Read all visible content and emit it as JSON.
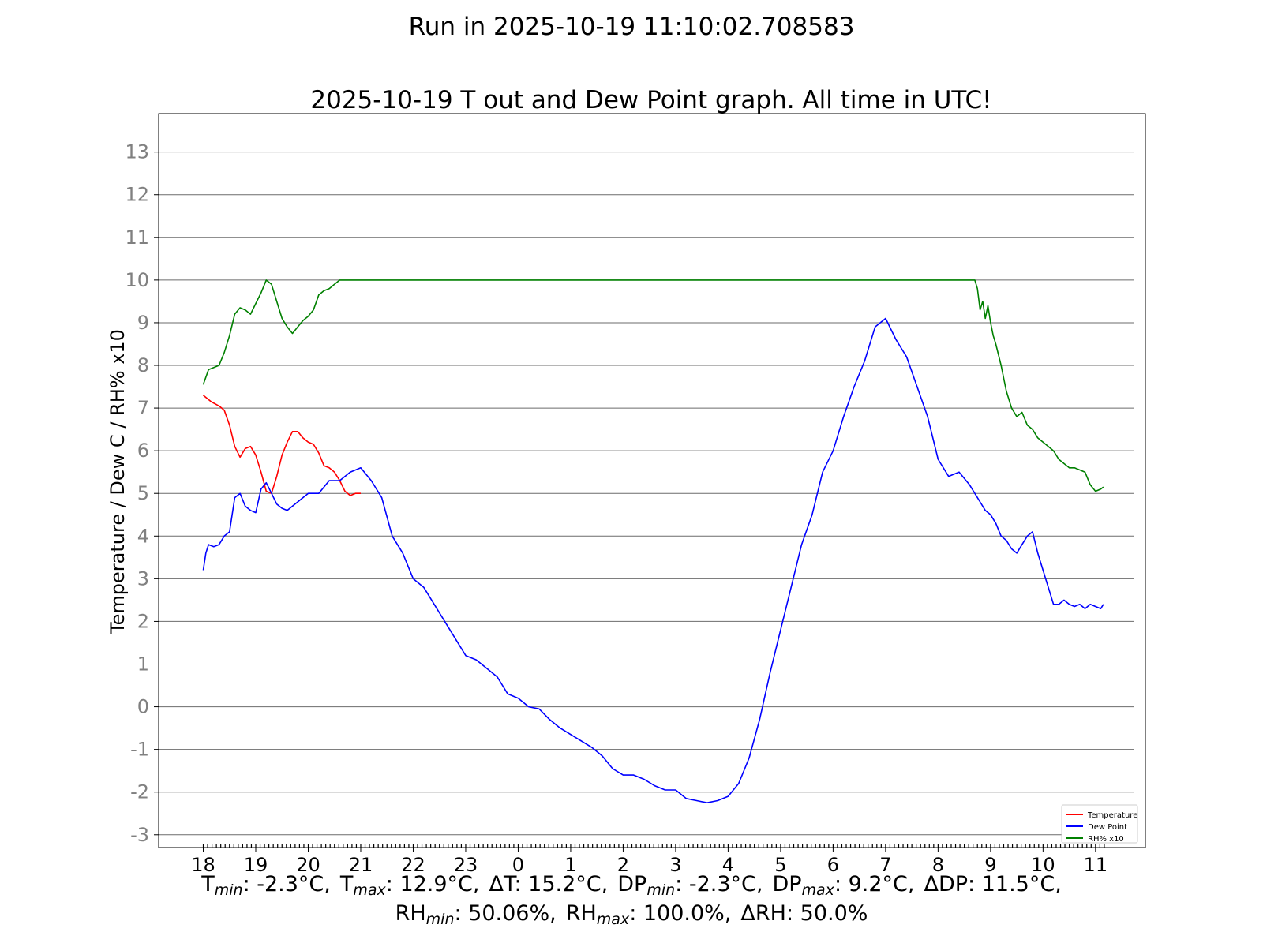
{
  "suptitle": "Run in 2025-10-19 11:10:02.708583",
  "stats": {
    "line1": [
      {
        "base": "T",
        "sub": "min",
        "value": ": -2.3°C,"
      },
      {
        "base": "T",
        "sub": "max",
        "value": ": 12.9°C,"
      },
      {
        "base": "ΔT",
        "sub": "",
        "value": ": 15.2°C,"
      },
      {
        "base": "DP",
        "sub": "min",
        "value": ": -2.3°C,"
      },
      {
        "base": "DP",
        "sub": "max",
        "value": ": 9.2°C,"
      },
      {
        "base": "ΔDP",
        "sub": "",
        "value": ": 11.5°C,"
      }
    ],
    "line2": [
      {
        "base": "RH",
        "sub": "min",
        "value": ": 50.06%,"
      },
      {
        "base": "RH",
        "sub": "max",
        "value": ": 100.0%,"
      },
      {
        "base": "ΔRH",
        "sub": "",
        "value": ": 50.0%"
      }
    ]
  },
  "chart_data": {
    "type": "line",
    "title": "2025-10-19 T out and Dew Point graph. All time in UTC!",
    "ylabel": "Temperature / Dew C / RH% x10",
    "xlabel": "",
    "x_unit": "hours since 18:00 UTC (2025-10-18 18:00 to 2025-10-19 11:10)",
    "x_ticks": [
      {
        "x": 0,
        "label": "18"
      },
      {
        "x": 1,
        "label": "19"
      },
      {
        "x": 2,
        "label": "20"
      },
      {
        "x": 3,
        "label": "21"
      },
      {
        "x": 4,
        "label": "22"
      },
      {
        "x": 5,
        "label": "23"
      },
      {
        "x": 6,
        "label": "0"
      },
      {
        "x": 7,
        "label": "1"
      },
      {
        "x": 8,
        "label": "2"
      },
      {
        "x": 9,
        "label": "3"
      },
      {
        "x": 10,
        "label": "4"
      },
      {
        "x": 11,
        "label": "5"
      },
      {
        "x": 12,
        "label": "6"
      },
      {
        "x": 13,
        "label": "7"
      },
      {
        "x": 14,
        "label": "8"
      },
      {
        "x": 15,
        "label": "9"
      },
      {
        "x": 16,
        "label": "10"
      },
      {
        "x": 17,
        "label": "11"
      }
    ],
    "y_ticks": [
      -3,
      -2,
      -1,
      0,
      1,
      2,
      3,
      4,
      5,
      6,
      7,
      8,
      9,
      10,
      11,
      12,
      13
    ],
    "xlim": [
      -0.85,
      17.95
    ],
    "ylim": [
      -3.3,
      13.9
    ],
    "grid": "horizontal",
    "legend_position": "lower-right",
    "series": [
      {
        "name": "Temperature",
        "color": "#ff0000",
        "x": [
          0,
          0.15,
          0.3,
          0.4,
          0.5,
          0.6,
          0.7,
          0.8,
          0.9,
          1.0,
          1.1,
          1.2,
          1.3,
          1.4,
          1.5,
          1.6,
          1.7,
          1.8,
          1.9,
          2.0,
          2.1,
          2.2,
          2.3,
          2.4,
          2.5,
          2.6,
          2.7,
          2.8,
          2.9,
          3.0
        ],
        "y": [
          7.3,
          7.15,
          7.05,
          6.95,
          6.6,
          6.1,
          5.85,
          6.05,
          6.1,
          5.9,
          5.5,
          5.05,
          5.0,
          5.4,
          5.9,
          6.2,
          6.45,
          6.45,
          6.3,
          6.2,
          6.15,
          5.95,
          5.65,
          5.6,
          5.5,
          5.3,
          5.05,
          4.95,
          5.0,
          5.0
        ]
      },
      {
        "name": "Dew Point",
        "color": "#0000ff",
        "x": [
          0,
          0.05,
          0.1,
          0.2,
          0.3,
          0.4,
          0.5,
          0.6,
          0.7,
          0.8,
          0.9,
          1.0,
          1.1,
          1.2,
          1.3,
          1.4,
          1.5,
          1.6,
          1.7,
          1.8,
          1.9,
          2.0,
          2.2,
          2.4,
          2.6,
          2.8,
          3.0,
          3.2,
          3.4,
          3.6,
          3.8,
          4.0,
          4.2,
          4.4,
          4.6,
          4.8,
          5.0,
          5.2,
          5.4,
          5.6,
          5.8,
          6.0,
          6.2,
          6.4,
          6.6,
          6.8,
          7.0,
          7.2,
          7.4,
          7.6,
          7.8,
          8.0,
          8.2,
          8.4,
          8.6,
          8.8,
          9.0,
          9.2,
          9.4,
          9.6,
          9.8,
          10.0,
          10.2,
          10.4,
          10.6,
          10.8,
          11.0,
          11.2,
          11.4,
          11.6,
          11.8,
          12.0,
          12.2,
          12.4,
          12.6,
          12.8,
          13.0,
          13.2,
          13.4,
          13.6,
          13.8,
          14.0,
          14.2,
          14.4,
          14.6,
          14.8,
          14.9,
          15.0,
          15.1,
          15.2,
          15.3,
          15.4,
          15.5,
          15.6,
          15.7,
          15.8,
          15.9,
          16.0,
          16.1,
          16.2,
          16.3,
          16.4,
          16.5,
          16.6,
          16.7,
          16.8,
          16.9,
          17.0,
          17.1,
          17.15
        ],
        "y": [
          3.2,
          3.6,
          3.8,
          3.75,
          3.8,
          4.0,
          4.1,
          4.9,
          5.0,
          4.7,
          4.6,
          4.55,
          5.1,
          5.25,
          5.0,
          4.75,
          4.65,
          4.6,
          4.7,
          4.8,
          4.9,
          5.0,
          5.0,
          5.3,
          5.3,
          5.5,
          5.6,
          5.3,
          4.9,
          4.0,
          3.6,
          3.0,
          2.8,
          2.4,
          2.0,
          1.6,
          1.2,
          1.1,
          0.9,
          0.7,
          0.3,
          0.2,
          0.0,
          -0.05,
          -0.3,
          -0.5,
          -0.65,
          -0.8,
          -0.95,
          -1.15,
          -1.45,
          -1.6,
          -1.6,
          -1.7,
          -1.85,
          -1.95,
          -1.95,
          -2.15,
          -2.2,
          -2.25,
          -2.2,
          -2.1,
          -1.8,
          -1.2,
          -0.3,
          0.8,
          1.8,
          2.8,
          3.8,
          4.5,
          5.5,
          6.0,
          6.8,
          7.5,
          8.1,
          8.9,
          9.1,
          8.6,
          8.2,
          7.5,
          6.8,
          5.8,
          5.4,
          5.5,
          5.2,
          4.8,
          4.6,
          4.5,
          4.3,
          4.0,
          3.9,
          3.7,
          3.6,
          3.8,
          4.0,
          4.1,
          3.6,
          3.2,
          2.8,
          2.4,
          2.4,
          2.5,
          2.4,
          2.35,
          2.4,
          2.3,
          2.4,
          2.35,
          2.3,
          2.4
        ]
      },
      {
        "name": "RH% x10",
        "color": "#008000",
        "x": [
          0,
          0.1,
          0.2,
          0.3,
          0.4,
          0.5,
          0.6,
          0.7,
          0.8,
          0.9,
          1.0,
          1.1,
          1.2,
          1.3,
          1.4,
          1.5,
          1.6,
          1.7,
          1.8,
          1.9,
          2.0,
          2.1,
          2.2,
          2.3,
          2.4,
          2.5,
          2.6,
          2.7,
          2.8,
          2.9,
          3.0,
          14.7,
          14.75,
          14.8,
          14.85,
          14.9,
          14.95,
          15.0,
          15.05,
          15.1,
          15.2,
          15.3,
          15.4,
          15.5,
          15.6,
          15.7,
          15.8,
          15.9,
          16.0,
          16.1,
          16.2,
          16.3,
          16.4,
          16.5,
          16.6,
          16.7,
          16.8,
          16.9,
          17.0,
          17.1,
          17.15
        ],
        "y": [
          7.55,
          7.9,
          7.95,
          8.0,
          8.3,
          8.7,
          9.2,
          9.35,
          9.3,
          9.2,
          9.45,
          9.7,
          10.0,
          9.9,
          9.5,
          9.1,
          8.9,
          8.75,
          8.9,
          9.05,
          9.15,
          9.3,
          9.65,
          9.75,
          9.8,
          9.9,
          10.0,
          10.0,
          10.0,
          10.0,
          10.0,
          10.0,
          9.8,
          9.3,
          9.5,
          9.1,
          9.4,
          9.0,
          8.7,
          8.5,
          8.0,
          7.4,
          7.0,
          6.8,
          6.9,
          6.6,
          6.5,
          6.3,
          6.2,
          6.1,
          6.0,
          5.8,
          5.7,
          5.6,
          5.6,
          5.55,
          5.5,
          5.2,
          5.05,
          5.1,
          5.15
        ]
      }
    ]
  }
}
